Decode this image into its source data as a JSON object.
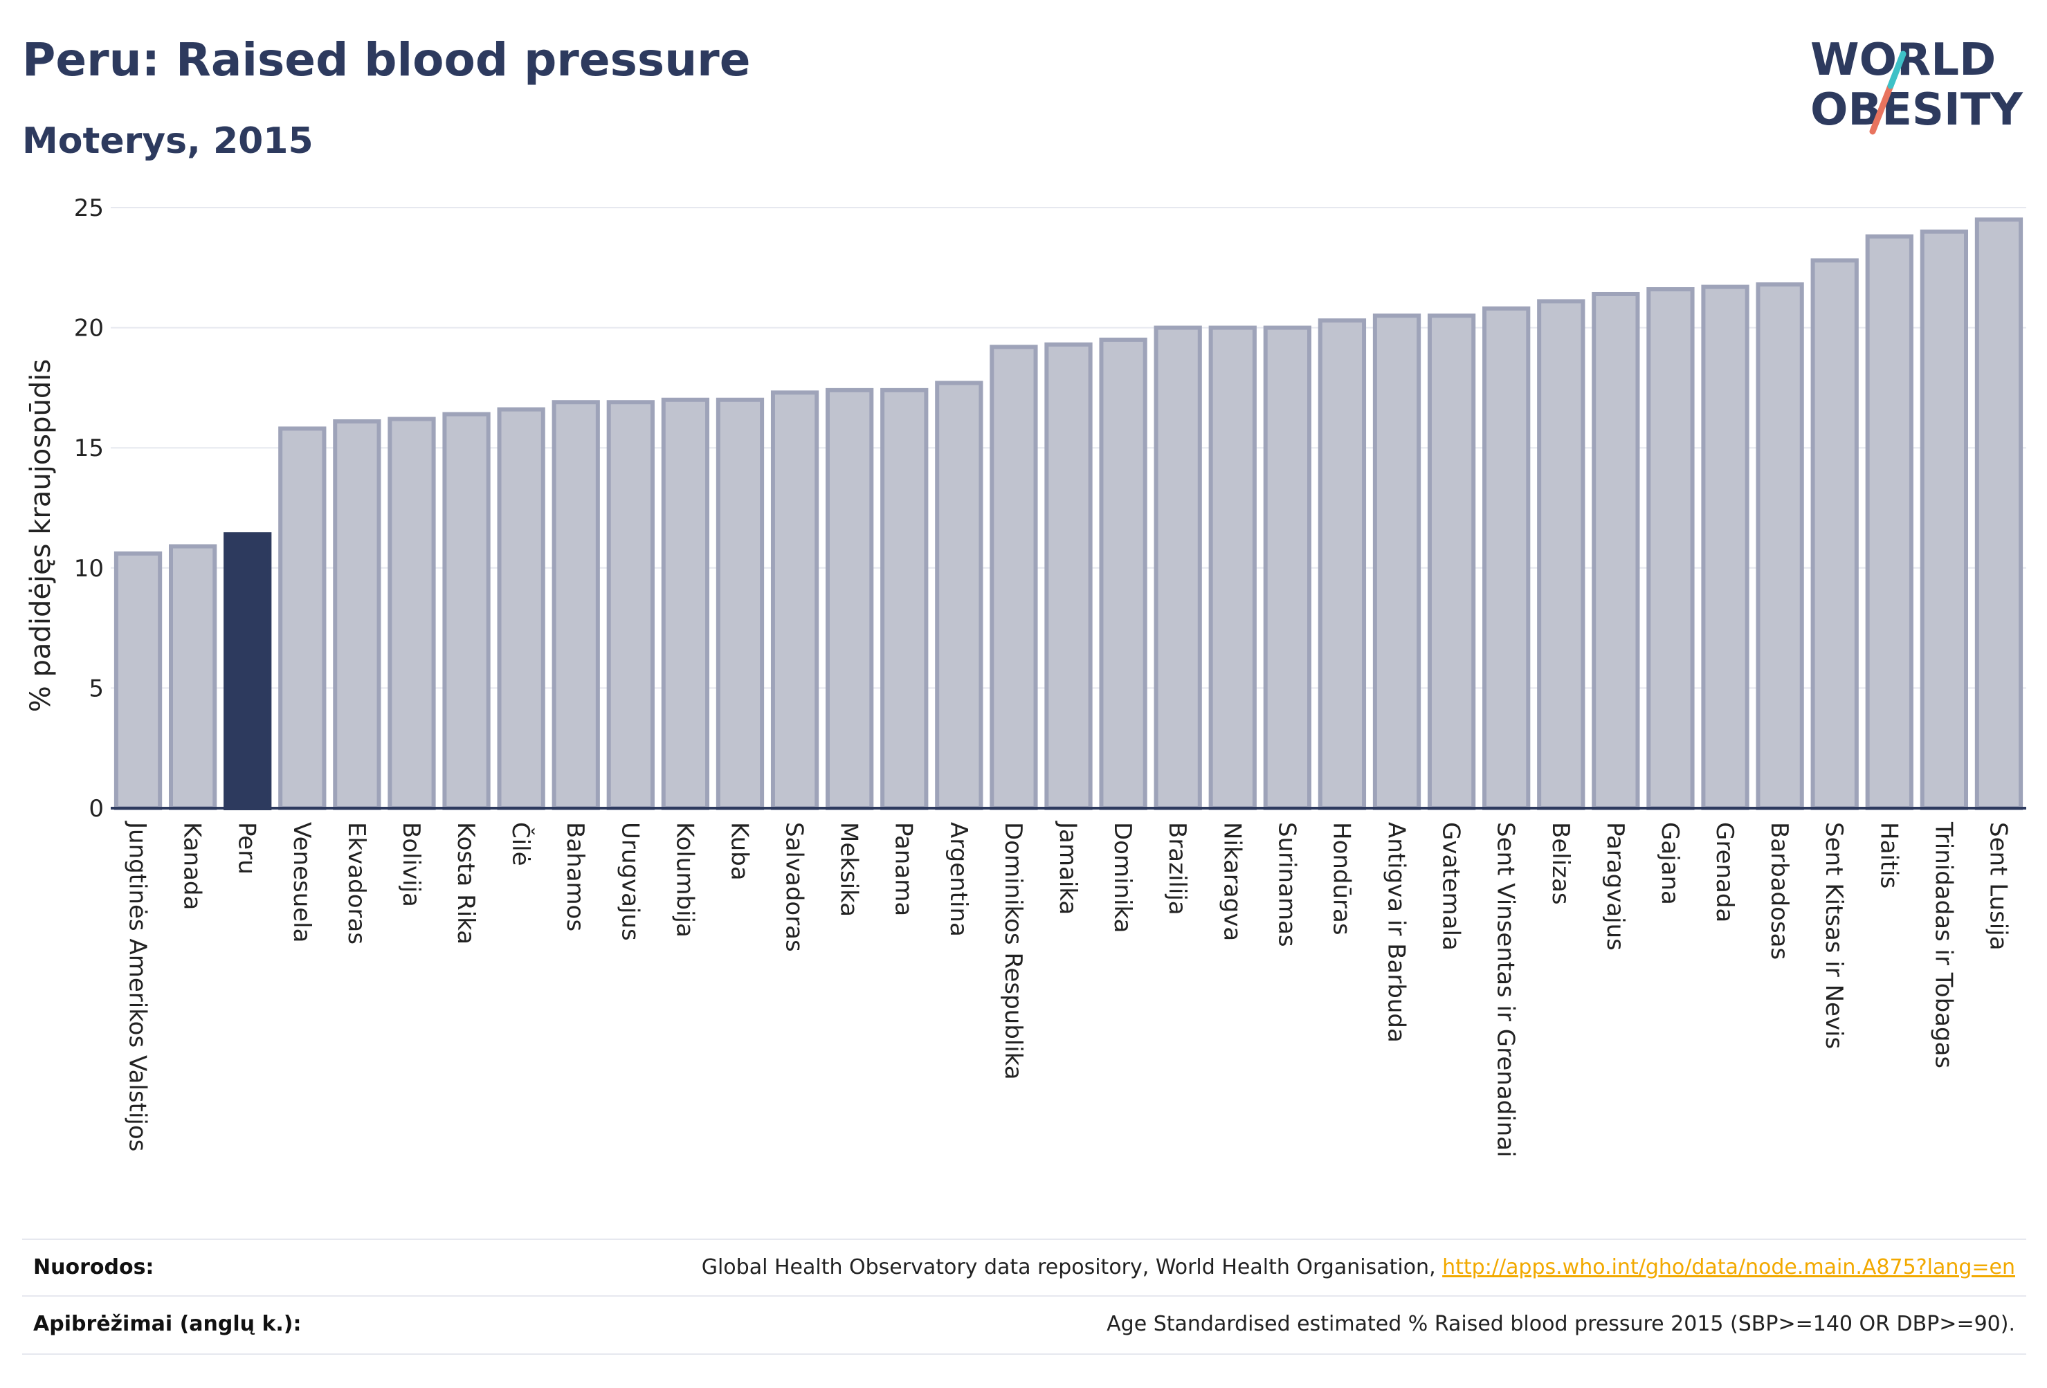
{
  "header": {
    "title": "Peru: Raised blood pressure",
    "subtitle": "Moterys, 2015"
  },
  "logo": {
    "line1": "WORLD",
    "line2": "OBESITY",
    "accent_colors": [
      "#3ec1c7",
      "#e8735e"
    ]
  },
  "colors": {
    "highlight": "#2d3a5e",
    "bar_fill": "#c0c3cf",
    "bar_stroke": "#9ea3b9",
    "grid": "#e6e8ef",
    "axis": "#2d3a5e"
  },
  "chart_data": {
    "type": "bar",
    "title": "Peru: Raised blood pressure",
    "subtitle": "Moterys, 2015",
    "ylabel": "% padidėjęs kraujospūdis",
    "xlabel": "",
    "ylim": [
      0,
      25
    ],
    "yticks": [
      0,
      5,
      10,
      15,
      20,
      25
    ],
    "grid": true,
    "highlight": "Peru",
    "categories": [
      "Jungtinės Amerikos Valstijos",
      "Kanada",
      "Peru",
      "Venesuela",
      "Ekvadoras",
      "Bolivija",
      "Kosta Rika",
      "Čilė",
      "Bahamos",
      "Urugvajus",
      "Kolumbija",
      "Kuba",
      "Salvadoras",
      "Meksika",
      "Panama",
      "Argentina",
      "Dominikos Respublika",
      "Jamaika",
      "Dominika",
      "Brazilija",
      "Nikaragva",
      "Surinamas",
      "Hondūras",
      "Antigva ir Barbuda",
      "Gvatemala",
      "Sent Vinsentas ir Grenadinai",
      "Belizas",
      "Paragvajus",
      "Gajana",
      "Grenada",
      "Barbadosas",
      "Sent Kitsas ir Nevis",
      "Haitis",
      "Trinidadas ir Tobagas",
      "Sent Lusija"
    ],
    "values": [
      10.6,
      10.9,
      11.4,
      15.8,
      16.1,
      16.2,
      16.4,
      16.6,
      16.9,
      16.9,
      17.0,
      17.0,
      17.3,
      17.4,
      17.4,
      17.7,
      19.2,
      19.3,
      19.5,
      20.0,
      20.0,
      20.0,
      20.3,
      20.5,
      20.5,
      20.8,
      21.1,
      21.4,
      21.6,
      21.7,
      21.8,
      22.8,
      23.8,
      24.0,
      24.5
    ]
  },
  "footer": {
    "sources_label": "Nuorodos:",
    "sources_text": "Global Health Observatory data repository, World Health Organisation, ",
    "sources_link": "http://apps.who.int/gho/data/node.main.A875?lang=en",
    "definitions_label": "Apibrėžimai (anglų k.):",
    "definitions_text": "Age Standardised estimated % Raised blood pressure 2015 (SBP>=140 OR DBP>=90)."
  }
}
